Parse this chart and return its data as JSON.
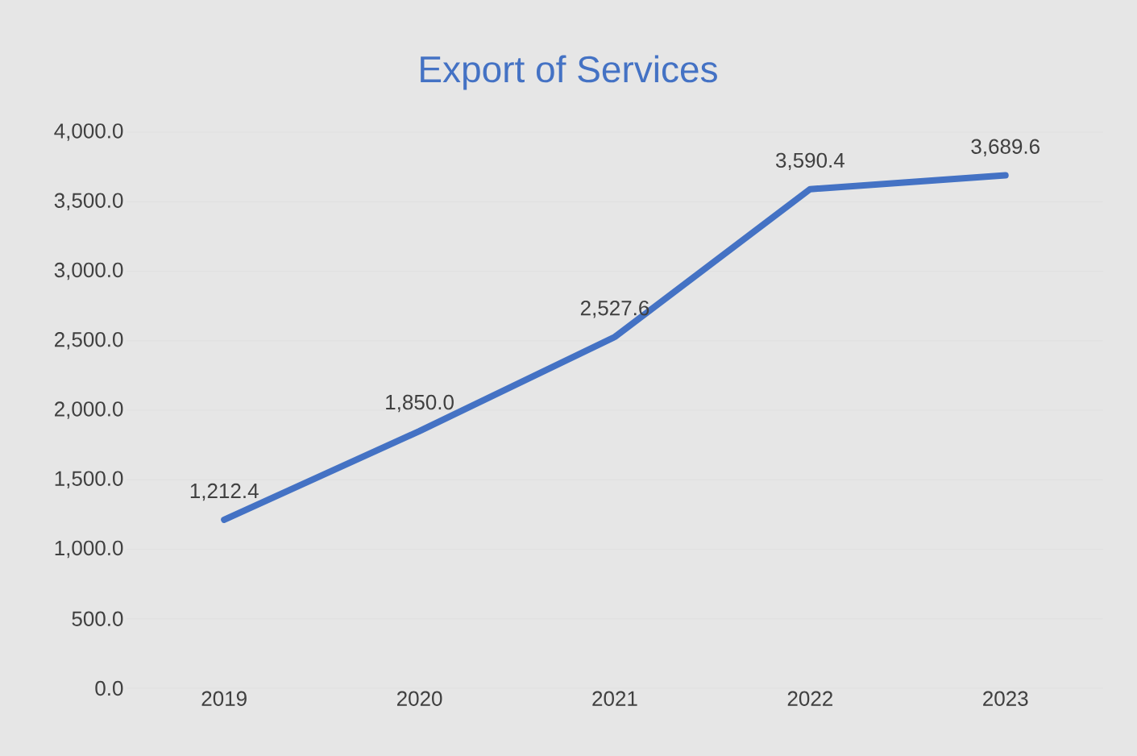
{
  "chart_data": {
    "type": "line",
    "title": "Export of Services",
    "categories": [
      "2019",
      "2020",
      "2021",
      "2022",
      "2023"
    ],
    "series": [
      {
        "color": "#4472c4",
        "values": [
          1212.4,
          1850.0,
          2527.6,
          3590.4,
          3689.6
        ],
        "value_labels": [
          "1,212.4",
          "1,850.0",
          "2,527.6",
          "3,590.4",
          "3,689.6"
        ]
      }
    ],
    "ylim": [
      0,
      4000
    ],
    "yticks": [
      {
        "value": 0,
        "label": "0.0"
      },
      {
        "value": 500,
        "label": "500.0"
      },
      {
        "value": 1000,
        "label": "1,000.0"
      },
      {
        "value": 1500,
        "label": "1,500.0"
      },
      {
        "value": 2000,
        "label": "2,000.0"
      },
      {
        "value": 2500,
        "label": "2,500.0"
      },
      {
        "value": 3000,
        "label": "3,000.0"
      },
      {
        "value": 3500,
        "label": "3,500.0"
      },
      {
        "value": 4000,
        "label": "4,000.0"
      }
    ],
    "grid": "y",
    "marker": "none",
    "line_style": "solid"
  }
}
